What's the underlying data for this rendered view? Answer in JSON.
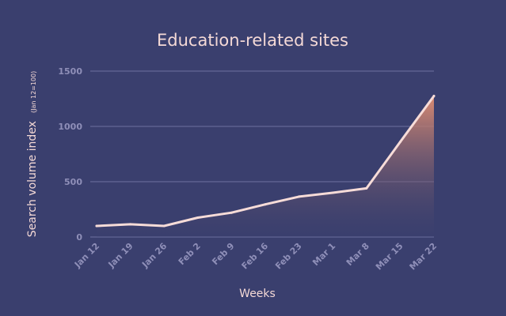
{
  "chart_data": {
    "type": "area",
    "title": "Education-related sites",
    "ylabel": "Search volume index",
    "ylabel_note": "(Jan 12=100)",
    "xlabel": "Weeks",
    "categories": [
      "Jan 12",
      "Jan 19",
      "Jan 26",
      "Feb 2",
      "Feb 9",
      "Feb 16",
      "Feb 23",
      "Mar 1",
      "Mar 8",
      "Mar 15",
      "Mar 22"
    ],
    "series": [
      {
        "values": [
          100,
          115,
          100,
          175,
          220,
          295,
          365,
          400,
          440,
          860,
          1275
        ]
      }
    ],
    "ylim": [
      0,
      1500
    ],
    "yticks": [
      0,
      500,
      1000,
      1500
    ],
    "grid": true,
    "legend": "none",
    "colors": {
      "background": "#3a3f6e",
      "line": "#f7dcd8",
      "fill_top": "#d98a72",
      "fill_bottom": "#3a3f6e",
      "grid": "#6d71a0",
      "tick_text": "#8f8fb8",
      "label_text": "#f4d9d6"
    }
  }
}
